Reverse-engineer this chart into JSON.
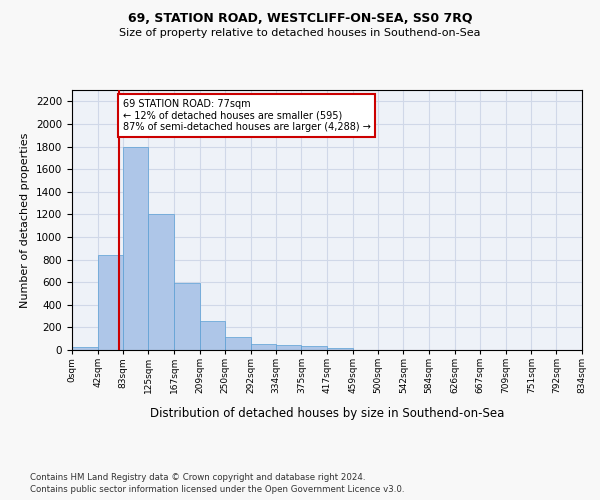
{
  "title1": "69, STATION ROAD, WESTCLIFF-ON-SEA, SS0 7RQ",
  "title2": "Size of property relative to detached houses in Southend-on-Sea",
  "xlabel": "Distribution of detached houses by size in Southend-on-Sea",
  "ylabel": "Number of detached properties",
  "footnote1": "Contains HM Land Registry data © Crown copyright and database right 2024.",
  "footnote2": "Contains public sector information licensed under the Open Government Licence v3.0.",
  "bar_values": [
    30,
    840,
    1800,
    1200,
    590,
    260,
    115,
    50,
    45,
    35,
    20,
    0,
    0,
    0,
    0,
    0,
    0,
    0,
    0,
    0
  ],
  "bin_edges": [
    0,
    42,
    83,
    125,
    167,
    209,
    250,
    292,
    334,
    375,
    417,
    459,
    500,
    542,
    584,
    626,
    667,
    709,
    751,
    792,
    834
  ],
  "tick_labels": [
    "0sqm",
    "42sqm",
    "83sqm",
    "125sqm",
    "167sqm",
    "209sqm",
    "250sqm",
    "292sqm",
    "334sqm",
    "375sqm",
    "417sqm",
    "459sqm",
    "500sqm",
    "542sqm",
    "584sqm",
    "626sqm",
    "667sqm",
    "709sqm",
    "751sqm",
    "792sqm",
    "834sqm"
  ],
  "bar_color": "#aec6e8",
  "bar_edgecolor": "#5a9fd4",
  "grid_color": "#d0d8e8",
  "bg_color": "#eef2f8",
  "fig_color": "#f8f8f8",
  "redline_x": 77,
  "annotation_text": "69 STATION ROAD: 77sqm\n← 12% of detached houses are smaller (595)\n87% of semi-detached houses are larger (4,288) →",
  "annotation_box_color": "#ffffff",
  "annotation_box_edgecolor": "#cc0000",
  "redline_color": "#cc0000",
  "ylim": [
    0,
    2300
  ],
  "yticks": [
    0,
    200,
    400,
    600,
    800,
    1000,
    1200,
    1400,
    1600,
    1800,
    2000,
    2200
  ]
}
